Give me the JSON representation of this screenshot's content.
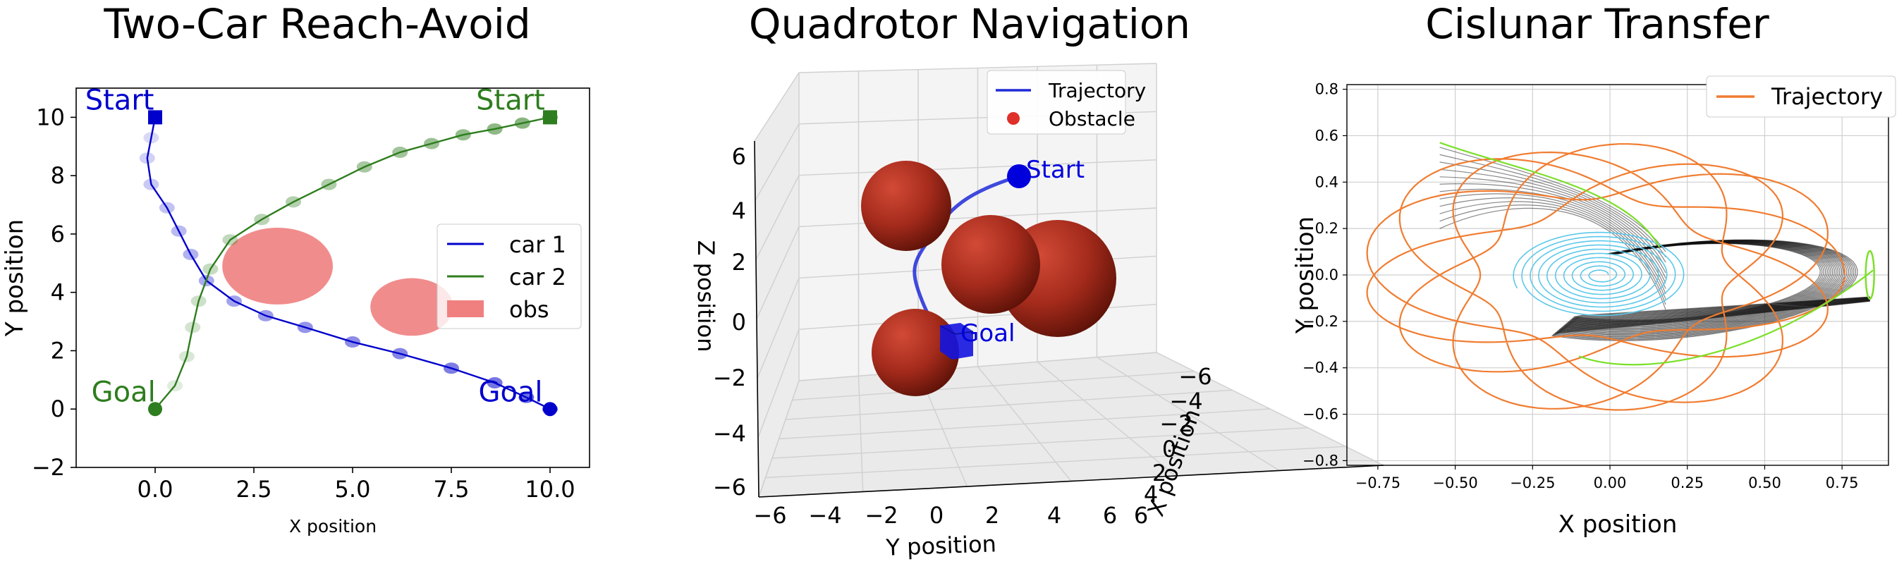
{
  "chart_data": [
    {
      "type": "line",
      "title": "Two-Car Reach-Avoid",
      "xlabel": "X position",
      "ylabel": "Y position",
      "xlim": [
        -2,
        11
      ],
      "ylim": [
        -2,
        11
      ],
      "xticks": [
        "0.0",
        "2.5",
        "5.0",
        "7.5",
        "10.0"
      ],
      "yticks": [
        "−2",
        "0",
        "2",
        "4",
        "6",
        "8",
        "10"
      ],
      "legend_position": "center-right",
      "series": [
        {
          "name": "car 1",
          "color": "#0000cc",
          "x": [
            0.0,
            -0.1,
            -0.2,
            -0.1,
            0.3,
            0.6,
            0.9,
            1.3,
            2.0,
            2.8,
            3.8,
            5.0,
            6.2,
            7.5,
            8.6,
            9.4,
            10.0
          ],
          "y": [
            10.0,
            9.3,
            8.6,
            7.7,
            6.9,
            6.1,
            5.3,
            4.4,
            3.7,
            3.2,
            2.8,
            2.3,
            1.9,
            1.4,
            0.9,
            0.4,
            0.0
          ]
        },
        {
          "name": "car 2",
          "color": "#2e7d1e",
          "x": [
            0.0,
            0.5,
            0.8,
            0.95,
            1.1,
            1.4,
            1.9,
            2.7,
            3.5,
            4.4,
            5.3,
            6.2,
            7.0,
            7.8,
            8.6,
            9.3,
            10.0
          ],
          "y": [
            0.0,
            0.8,
            1.8,
            2.8,
            3.7,
            4.8,
            5.8,
            6.5,
            7.1,
            7.7,
            8.3,
            8.8,
            9.1,
            9.4,
            9.6,
            9.8,
            10.0
          ]
        },
        {
          "name": "obs",
          "color": "#f08080",
          "ellipses": [
            {
              "cx": 3.1,
              "cy": 4.9,
              "rx": 1.4,
              "ry": 1.4
            },
            {
              "cx": 6.5,
              "cy": 3.5,
              "rx": 1.05,
              "ry": 1.05
            }
          ]
        }
      ],
      "annotations": [
        {
          "text": "Start",
          "x": -0.9,
          "y": 10.6,
          "color": "#0000cc"
        },
        {
          "text": "Start",
          "x": 9.0,
          "y": 10.6,
          "color": "#2e7d1e"
        },
        {
          "text": "Goal",
          "x": -0.8,
          "y": 0.6,
          "color": "#2e7d1e"
        },
        {
          "text": "Goal",
          "x": 9.0,
          "y": 0.6,
          "color": "#0000cc"
        }
      ]
    },
    {
      "type": "scatter",
      "title": "Quadrotor Navigation",
      "xlabel": "X position",
      "ylabel": "Y position",
      "zlabel": "Z position",
      "xticks": [
        "−6",
        "−4",
        "−2",
        "0",
        "2",
        "4",
        "6"
      ],
      "yticks": [
        "−6",
        "−4",
        "−2",
        "0",
        "2",
        "4",
        "6"
      ],
      "zticks": [
        "−6",
        "−4",
        "−2",
        "0",
        "2",
        "4",
        "6"
      ],
      "legend_position": "top-right",
      "series": [
        {
          "name": "Trajectory",
          "color": "#1f2ad8"
        },
        {
          "name": "Obstacle",
          "color": "#e0302a"
        }
      ],
      "annotations": [
        {
          "text": "Start",
          "color": "#0000dd"
        },
        {
          "text": "Goal",
          "color": "#0000dd"
        }
      ]
    },
    {
      "type": "line",
      "title": "Cislunar Transfer",
      "xlabel": "X position",
      "ylabel": "Y position",
      "xlim": [
        -0.85,
        0.9
      ],
      "ylim": [
        -0.82,
        0.82
      ],
      "xticks": [
        "−0.75",
        "−0.50",
        "−0.25",
        "0.00",
        "0.25",
        "0.50",
        "0.75"
      ],
      "yticks": [
        "−0.8",
        "−0.6",
        "−0.4",
        "−0.2",
        "0.0",
        "0.2",
        "0.4",
        "0.6",
        "0.8"
      ],
      "legend_position": "top-right",
      "series": [
        {
          "name": "Trajectory",
          "color": "#f07c30"
        }
      ]
    }
  ]
}
